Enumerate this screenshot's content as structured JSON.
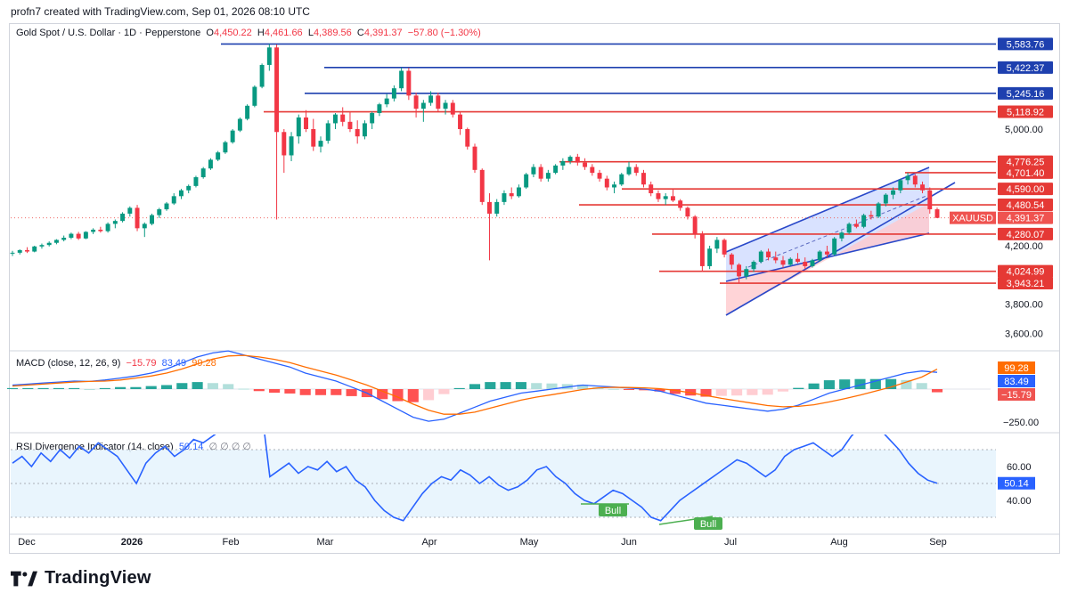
{
  "header": {
    "created_by": "profn7 created with TradingView.com, Sep 01, 2026 08:10 UTC"
  },
  "legend": {
    "title": "Gold Spot / U.S. Dollar · 1D · Pepperstone",
    "o_label": "O",
    "o_value": "4,450.22",
    "h_label": "H",
    "h_value": "4,461.66",
    "l_label": "L",
    "l_value": "4,389.56",
    "c_label": "C",
    "c_value": "4,391.37",
    "change": "−57.80 (−1.30%)",
    "macd_name": "MACD (close, 12, 26, 9)",
    "macd_values": [
      "−15.79",
      "83.49",
      "99.28"
    ],
    "rsi_name": "RSI Divergence Indicator (14, close)",
    "rsi_value": "50.14",
    "rsi_extra": "∅ ∅ ∅ ∅"
  },
  "footer": {
    "brand": "TradingView"
  },
  "chart_data": {
    "type": "candlestick",
    "symbol": "XAUUSD",
    "x_ticks": [
      "Dec",
      "2026",
      "Feb",
      "Mar",
      "Apr",
      "May",
      "Jun",
      "Jul",
      "Aug",
      "Sep"
    ],
    "price_axis": {
      "ticks": [
        "5,000.00",
        "4,200.00",
        "3,800.00",
        "3,600.00"
      ],
      "ylim": [
        3500,
        5650
      ]
    },
    "price_labels": [
      {
        "text": "5,583.76",
        "value": 5583.76,
        "color": "#1e40af"
      },
      {
        "text": "5,422.37",
        "value": 5422.37,
        "color": "#1e40af"
      },
      {
        "text": "5,245.16",
        "value": 5245.16,
        "color": "#1e40af"
      },
      {
        "text": "5,118.92",
        "value": 5118.92,
        "color": "#e53935"
      },
      {
        "text": "4,776.25",
        "value": 4776.25,
        "color": "#e53935"
      },
      {
        "text": "4,701.40",
        "value": 4701.4,
        "color": "#e53935"
      },
      {
        "text": "4,590.00",
        "value": 4590.0,
        "color": "#e53935"
      },
      {
        "text": "4,480.54",
        "value": 4480.54,
        "color": "#e53935"
      },
      {
        "text": "4,391.37",
        "value": 4391.37,
        "color": "#ef5350"
      },
      {
        "text": "4,280.07",
        "value": 4280.07,
        "color": "#e53935"
      },
      {
        "text": "4,024.99",
        "value": 4024.99,
        "color": "#e53935"
      },
      {
        "text": "3,943.21",
        "value": 3943.21,
        "color": "#e53935"
      }
    ],
    "horizontal_levels": [
      {
        "value": 5583.76,
        "color": "#1e40af",
        "x_start": "Feb",
        "label": "5,583.76"
      },
      {
        "value": 5422.37,
        "color": "#1e40af",
        "x_start": "Mar",
        "label": "5,422.37"
      },
      {
        "value": 5245.16,
        "color": "#1e40af",
        "x_start": "Mar",
        "label": "5,245.16"
      },
      {
        "value": 5118.92,
        "color": "#e53935",
        "x_start": "Feb",
        "label": "5,118.92"
      },
      {
        "value": 4776.25,
        "color": "#e53935",
        "x_start": "May",
        "label": "4,776.25"
      },
      {
        "value": 4701.4,
        "color": "#e53935",
        "x_start": "Aug",
        "label": "4,701.40"
      },
      {
        "value": 4590.0,
        "color": "#e53935",
        "x_start": "May",
        "label": "4,590.00"
      },
      {
        "value": 4480.54,
        "color": "#e53935",
        "x_start": "May",
        "label": "4,480.54"
      },
      {
        "value": 4280.07,
        "color": "#e53935",
        "x_start": "Jun",
        "label": "4,280.07"
      },
      {
        "value": 4024.99,
        "color": "#e53935",
        "x_start": "Jun",
        "label": "4,024.99"
      },
      {
        "value": 3943.21,
        "color": "#e53935",
        "x_start": "Jun",
        "label": "3,943.21"
      }
    ],
    "last_price": {
      "value": 4391.37,
      "label": "4,391.37",
      "symbol": "XAUUSD"
    },
    "ohlc": [
      [
        4146,
        4165,
        4130,
        4152
      ],
      [
        4152,
        4175,
        4140,
        4170
      ],
      [
        4170,
        4190,
        4150,
        4160
      ],
      [
        4160,
        4200,
        4155,
        4195
      ],
      [
        4195,
        4215,
        4180,
        4205
      ],
      [
        4205,
        4230,
        4195,
        4220
      ],
      [
        4220,
        4245,
        4210,
        4240
      ],
      [
        4240,
        4270,
        4230,
        4255
      ],
      [
        4255,
        4290,
        4245,
        4282
      ],
      [
        4282,
        4295,
        4240,
        4250
      ],
      [
        4250,
        4300,
        4245,
        4295
      ],
      [
        4295,
        4320,
        4280,
        4310
      ],
      [
        4310,
        4330,
        4290,
        4300
      ],
      [
        4300,
        4360,
        4290,
        4350
      ],
      [
        4350,
        4380,
        4320,
        4370
      ],
      [
        4370,
        4430,
        4360,
        4420
      ],
      [
        4420,
        4470,
        4400,
        4460
      ],
      [
        4460,
        4480,
        4300,
        4320
      ],
      [
        4320,
        4360,
        4260,
        4350
      ],
      [
        4350,
        4420,
        4340,
        4410
      ],
      [
        4410,
        4460,
        4390,
        4450
      ],
      [
        4450,
        4500,
        4440,
        4490
      ],
      [
        4490,
        4560,
        4480,
        4540
      ],
      [
        4540,
        4590,
        4520,
        4580
      ],
      [
        4580,
        4620,
        4560,
        4610
      ],
      [
        4610,
        4680,
        4600,
        4670
      ],
      [
        4670,
        4740,
        4660,
        4730
      ],
      [
        4730,
        4800,
        4720,
        4790
      ],
      [
        4790,
        4850,
        4780,
        4840
      ],
      [
        4840,
        4920,
        4830,
        4910
      ],
      [
        4910,
        5000,
        4900,
        4990
      ],
      [
        4990,
        5080,
        4980,
        5070
      ],
      [
        5070,
        5170,
        5060,
        5160
      ],
      [
        5160,
        5300,
        5150,
        5290
      ],
      [
        5290,
        5450,
        5280,
        5440
      ],
      [
        5440,
        5583,
        5400,
        5560
      ],
      [
        5560,
        5580,
        4380,
        4980
      ],
      [
        4980,
        5000,
        4700,
        4820
      ],
      [
        4820,
        4980,
        4780,
        4950
      ],
      [
        4950,
        5100,
        4900,
        5080
      ],
      [
        5080,
        5130,
        4980,
        5000
      ],
      [
        5000,
        5070,
        4850,
        4880
      ],
      [
        4880,
        4950,
        4840,
        4920
      ],
      [
        4920,
        5060,
        4900,
        5040
      ],
      [
        5040,
        5110,
        5000,
        5100
      ],
      [
        5100,
        5150,
        5020,
        5050
      ],
      [
        5050,
        5120,
        4980,
        5000
      ],
      [
        5000,
        5060,
        4900,
        4950
      ],
      [
        4950,
        5060,
        4930,
        5040
      ],
      [
        5040,
        5120,
        5000,
        5110
      ],
      [
        5110,
        5180,
        5090,
        5170
      ],
      [
        5170,
        5240,
        5150,
        5210
      ],
      [
        5210,
        5300,
        5190,
        5280
      ],
      [
        5280,
        5422,
        5260,
        5400
      ],
      [
        5400,
        5420,
        5200,
        5230
      ],
      [
        5230,
        5250,
        5080,
        5140
      ],
      [
        5140,
        5200,
        5050,
        5180
      ],
      [
        5180,
        5260,
        5160,
        5230
      ],
      [
        5230,
        5250,
        5120,
        5140
      ],
      [
        5140,
        5200,
        5100,
        5180
      ],
      [
        5180,
        5200,
        5080,
        5100
      ],
      [
        5100,
        5120,
        4960,
        5000
      ],
      [
        5000,
        5010,
        4860,
        4880
      ],
      [
        4880,
        4900,
        4700,
        4720
      ],
      [
        4720,
        4730,
        4480,
        4500
      ],
      [
        4500,
        4560,
        4100,
        4420
      ],
      [
        4420,
        4520,
        4400,
        4500
      ],
      [
        4500,
        4580,
        4480,
        4560
      ],
      [
        4560,
        4600,
        4520,
        4540
      ],
      [
        4540,
        4620,
        4530,
        4600
      ],
      [
        4600,
        4700,
        4590,
        4690
      ],
      [
        4690,
        4760,
        4670,
        4740
      ],
      [
        4740,
        4760,
        4640,
        4660
      ],
      [
        4660,
        4720,
        4640,
        4700
      ],
      [
        4700,
        4760,
        4690,
        4750
      ],
      [
        4750,
        4800,
        4720,
        4780
      ],
      [
        4780,
        4820,
        4760,
        4810
      ],
      [
        4810,
        4830,
        4750,
        4770
      ],
      [
        4770,
        4800,
        4720,
        4740
      ],
      [
        4740,
        4760,
        4680,
        4700
      ],
      [
        4700,
        4720,
        4640,
        4660
      ],
      [
        4660,
        4680,
        4580,
        4600
      ],
      [
        4600,
        4640,
        4560,
        4620
      ],
      [
        4620,
        4700,
        4610,
        4690
      ],
      [
        4690,
        4776,
        4680,
        4740
      ],
      [
        4740,
        4760,
        4680,
        4700
      ],
      [
        4700,
        4720,
        4600,
        4620
      ],
      [
        4620,
        4640,
        4540,
        4560
      ],
      [
        4560,
        4580,
        4500,
        4520
      ],
      [
        4520,
        4560,
        4480,
        4540
      ],
      [
        4540,
        4590,
        4500,
        4510
      ],
      [
        4510,
        4520,
        4440,
        4460
      ],
      [
        4460,
        4470,
        4380,
        4400
      ],
      [
        4400,
        4410,
        4250,
        4280
      ],
      [
        4280,
        4300,
        4020,
        4060
      ],
      [
        4060,
        4200,
        4040,
        4180
      ],
      [
        4180,
        4260,
        4150,
        4240
      ],
      [
        4240,
        4250,
        4120,
        4140
      ],
      [
        4140,
        4150,
        4040,
        4070
      ],
      [
        4070,
        4080,
        3943,
        3990
      ],
      [
        3990,
        4060,
        3970,
        4040
      ],
      [
        4040,
        4100,
        4020,
        4090
      ],
      [
        4090,
        4170,
        4080,
        4160
      ],
      [
        4160,
        4180,
        4100,
        4120
      ],
      [
        4120,
        4160,
        4080,
        4100
      ],
      [
        4100,
        4130,
        4050,
        4070
      ],
      [
        4070,
        4120,
        4060,
        4110
      ],
      [
        4110,
        4150,
        4080,
        4090
      ],
      [
        4090,
        4120,
        4040,
        4060
      ],
      [
        4060,
        4110,
        4050,
        4100
      ],
      [
        4100,
        4170,
        4090,
        4160
      ],
      [
        4160,
        4200,
        4120,
        4140
      ],
      [
        4140,
        4260,
        4130,
        4250
      ],
      [
        4250,
        4300,
        4230,
        4290
      ],
      [
        4290,
        4360,
        4280,
        4350
      ],
      [
        4350,
        4380,
        4320,
        4330
      ],
      [
        4330,
        4420,
        4320,
        4410
      ],
      [
        4410,
        4440,
        4380,
        4400
      ],
      [
        4400,
        4500,
        4390,
        4490
      ],
      [
        4490,
        4560,
        4470,
        4550
      ],
      [
        4550,
        4600,
        4520,
        4580
      ],
      [
        4580,
        4660,
        4560,
        4650
      ],
      [
        4650,
        4701,
        4620,
        4680
      ],
      [
        4680,
        4690,
        4600,
        4620
      ],
      [
        4620,
        4640,
        4560,
        4580
      ],
      [
        4580,
        4600,
        4420,
        4450
      ],
      [
        4450,
        4462,
        4390,
        4391
      ]
    ],
    "macd": {
      "series": [
        {
          "name": "MACD",
          "color": "#2962ff"
        },
        {
          "name": "Signal",
          "color": "#ff6d00"
        },
        {
          "name": "Histogram",
          "color": "#26a69a"
        }
      ],
      "axis_labels": [
        "99.28",
        "83.49",
        "−15.79",
        "−250.00"
      ],
      "macd_line": [
        20,
        25,
        30,
        35,
        40,
        38,
        45,
        55,
        65,
        80,
        100,
        130,
        160,
        180,
        190,
        170,
        150,
        130,
        110,
        80,
        60,
        40,
        10,
        -20,
        -60,
        -100,
        -140,
        -160,
        -150,
        -120,
        -90,
        -60,
        -40,
        -20,
        -10,
        0,
        10,
        20,
        15,
        10,
        5,
        0,
        -10,
        -30,
        -50,
        -70,
        -80,
        -90,
        -100,
        -110,
        -100,
        -80,
        -50,
        -20,
        0,
        20,
        40,
        60,
        80,
        90,
        83.49
      ],
      "signal_line": [
        15,
        20,
        25,
        30,
        35,
        38,
        40,
        45,
        55,
        65,
        80,
        100,
        125,
        150,
        165,
        168,
        160,
        148,
        132,
        110,
        90,
        70,
        45,
        20,
        -10,
        -40,
        -75,
        -105,
        -125,
        -125,
        -115,
        -95,
        -75,
        -55,
        -40,
        -28,
        -15,
        -2,
        6,
        9,
        8,
        6,
        2,
        -6,
        -18,
        -32,
        -46,
        -58,
        -70,
        -82,
        -88,
        -86,
        -78,
        -64,
        -48,
        -30,
        -10,
        10,
        35,
        60,
        99.28
      ],
      "histogram": [
        5,
        5,
        5,
        5,
        5,
        0,
        5,
        10,
        10,
        15,
        20,
        30,
        35,
        30,
        25,
        2,
        -10,
        -18,
        -22,
        -30,
        -30,
        -30,
        -35,
        -40,
        -50,
        -60,
        -65,
        -55,
        -25,
        5,
        25,
        35,
        35,
        35,
        30,
        28,
        25,
        22,
        9,
        1,
        -3,
        -6,
        -12,
        -24,
        -32,
        -38,
        -34,
        -32,
        -30,
        -28,
        -12,
        6,
        28,
        44,
        48,
        50,
        50,
        50,
        45,
        30,
        -15.79
      ]
    },
    "rsi": {
      "value_label": "50.14",
      "axis_labels": [
        "60.00",
        "40.00",
        "50.14"
      ],
      "band": [
        30,
        70
      ],
      "values": [
        62,
        66,
        60,
        68,
        63,
        70,
        65,
        72,
        68,
        74,
        70,
        66,
        58,
        50,
        62,
        68,
        72,
        66,
        70,
        76,
        74,
        78,
        82,
        90,
        95,
        99,
        100,
        54,
        58,
        62,
        56,
        60,
        58,
        63,
        57,
        60,
        52,
        48,
        40,
        34,
        30,
        28,
        36,
        44,
        50,
        54,
        52,
        58,
        55,
        50,
        54,
        49,
        46,
        48,
        52,
        58,
        60,
        54,
        50,
        44,
        40,
        38,
        42,
        46,
        44,
        40,
        36,
        30,
        28,
        34,
        40,
        44,
        48,
        52,
        56,
        60,
        64,
        62,
        58,
        54,
        58,
        66,
        70,
        72,
        74,
        70,
        66,
        70,
        78,
        84,
        86,
        82,
        76,
        70,
        62,
        56,
        52,
        50.14
      ],
      "annotations": [
        {
          "text": "Bull",
          "color": "#4caf50"
        },
        {
          "text": "Bull",
          "color": "#4caf50"
        }
      ]
    }
  }
}
